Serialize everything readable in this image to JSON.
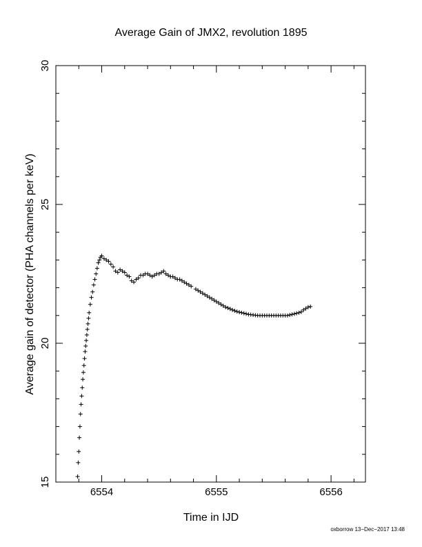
{
  "chart_data": {
    "type": "scatter",
    "title": "Average Gain of JMX2, revolution 1895",
    "xlabel": "Time in IJD",
    "ylabel": "Average gain of detector (PHA channels per keV)",
    "xlim": [
      6553.6,
      6556.3
    ],
    "ylim": [
      15,
      30
    ],
    "xticks": [
      "6554",
      "6555",
      "6556"
    ],
    "yticks": [
      "15",
      "20",
      "25",
      "30"
    ],
    "marker": "plus",
    "grid": false,
    "series": [
      {
        "x": [
          6553.79,
          6553.795,
          6553.8,
          6553.805,
          6553.81,
          6553.815,
          6553.82,
          6553.825,
          6553.83,
          6553.835,
          6553.84,
          6553.845,
          6553.85,
          6553.855,
          6553.86,
          6553.865,
          6553.87,
          6553.875,
          6553.88,
          6553.885,
          6553.89,
          6553.9,
          6553.91,
          6553.92,
          6553.93,
          6553.94,
          6553.95,
          6553.96,
          6553.97,
          6553.98,
          6553.99,
          6554.0,
          6554.02,
          6554.04,
          6554.06,
          6554.08,
          6554.1,
          6554.12,
          6554.14,
          6554.16,
          6554.18,
          6554.2,
          6554.22,
          6554.24,
          6554.26,
          6554.28,
          6554.3,
          6554.32,
          6554.34,
          6554.36,
          6554.38,
          6554.4,
          6554.42,
          6554.44,
          6554.46,
          6554.48,
          6554.5,
          6554.52,
          6554.54,
          6554.56,
          6554.58,
          6554.6,
          6554.62,
          6554.64,
          6554.66,
          6554.68,
          6554.7,
          6554.72,
          6554.74,
          6554.76,
          6554.78,
          6554.82,
          6554.84,
          6554.86,
          6554.88,
          6554.9,
          6554.92,
          6554.94,
          6554.96,
          6554.98,
          6555.0,
          6555.02,
          6555.04,
          6555.06,
          6555.08,
          6555.1,
          6555.12,
          6555.14,
          6555.16,
          6555.18,
          6555.2,
          6555.22,
          6555.24,
          6555.26,
          6555.28,
          6555.3,
          6555.32,
          6555.34,
          6555.36,
          6555.38,
          6555.4,
          6555.42,
          6555.44,
          6555.46,
          6555.48,
          6555.5,
          6555.52,
          6555.54,
          6555.56,
          6555.58,
          6555.6,
          6555.62,
          6555.64,
          6555.66,
          6555.68,
          6555.7,
          6555.72,
          6555.74,
          6555.76,
          6555.78,
          6555.8,
          6555.82
        ],
        "y": [
          15.2,
          15.7,
          16.1,
          16.6,
          17.0,
          17.45,
          17.8,
          18.1,
          18.4,
          18.7,
          18.95,
          19.2,
          19.45,
          19.7,
          19.9,
          20.1,
          20.3,
          20.5,
          20.7,
          20.9,
          21.1,
          21.4,
          21.65,
          21.85,
          22.1,
          22.3,
          22.5,
          22.7,
          22.9,
          23.0,
          23.1,
          23.15,
          23.05,
          23.0,
          22.95,
          22.85,
          22.75,
          22.6,
          22.55,
          22.65,
          22.6,
          22.55,
          22.45,
          22.4,
          22.25,
          22.2,
          22.3,
          22.35,
          22.45,
          22.45,
          22.5,
          22.5,
          22.45,
          22.4,
          22.45,
          22.5,
          22.5,
          22.55,
          22.6,
          22.5,
          22.45,
          22.4,
          22.4,
          22.35,
          22.3,
          22.3,
          22.25,
          22.2,
          22.15,
          22.1,
          22.05,
          21.95,
          21.9,
          21.85,
          21.8,
          21.75,
          21.7,
          21.65,
          21.6,
          21.55,
          21.5,
          21.45,
          21.4,
          21.35,
          21.3,
          21.27,
          21.24,
          21.2,
          21.17,
          21.14,
          21.12,
          21.1,
          21.08,
          21.06,
          21.04,
          21.03,
          21.02,
          21.01,
          21.0,
          21.0,
          21.0,
          21.0,
          21.0,
          21.0,
          21.0,
          21.0,
          21.0,
          21.0,
          21.0,
          21.0,
          21.0,
          21.0,
          21.02,
          21.04,
          21.06,
          21.08,
          21.1,
          21.13,
          21.2,
          21.25,
          21.3,
          21.32
        ]
      }
    ]
  },
  "footer": "oxborrow 13−Dec−2017 13:48"
}
